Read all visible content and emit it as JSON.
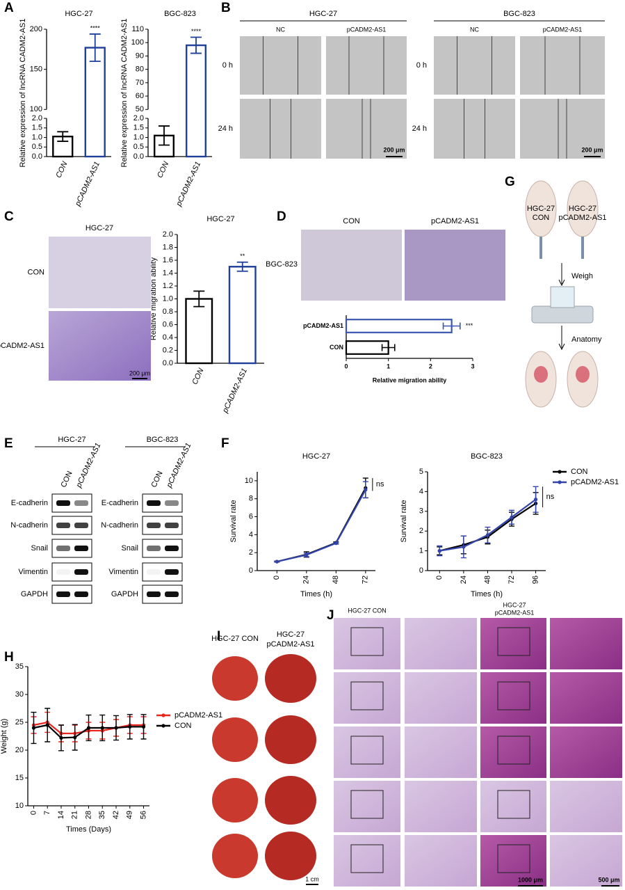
{
  "panel_letters": [
    "A",
    "B",
    "C",
    "D",
    "E",
    "F",
    "G",
    "H",
    "I",
    "J"
  ],
  "chart_data": [
    {
      "type": "bar",
      "title": "HGC-27",
      "y_label": "Relative expression of lncRNA CADM2-AS1",
      "categories": [
        "CON",
        "pCADM2-AS1"
      ],
      "values": [
        1.05,
        177
      ],
      "errors": [
        0.25,
        17
      ],
      "colors": [
        "#000000",
        "#1f3f99"
      ],
      "significance": [
        null,
        "****"
      ],
      "ylim_segments": [
        [
          0,
          2
        ],
        [
          100,
          200
        ]
      ],
      "yticks": [
        {
          "value": 0,
          "label": "0.0"
        },
        0.5,
        {
          "value": 1,
          "label": "1.0"
        },
        1.5,
        {
          "value": 2,
          "label": "2.0"
        },
        100,
        150,
        200
      ]
    },
    {
      "type": "bar",
      "title": "BGC-823",
      "y_label": "Relative expression of lncRNA CADM2-AS1",
      "categories": [
        "CON",
        "pCADM2-AS1"
      ],
      "values": [
        1.1,
        98
      ],
      "errors": [
        0.5,
        6
      ],
      "colors": [
        "#000000",
        "#1f3f99"
      ],
      "significance": [
        null,
        "****"
      ],
      "ylim_segments": [
        [
          0,
          2
        ],
        [
          50,
          110
        ]
      ],
      "yticks": [
        {
          "value": 0,
          "label": "0.0"
        },
        0.5,
        {
          "value": 1,
          "label": "1.0"
        },
        1.5,
        {
          "value": 2,
          "label": "2.0"
        },
        50,
        60,
        70,
        80,
        90,
        100,
        110
      ]
    },
    {
      "type": "bar",
      "title": "HGC-27",
      "y_label": "Relative migration ability",
      "categories": [
        "CON",
        "pCADM2-AS1"
      ],
      "values": [
        1.0,
        1.5
      ],
      "errors": [
        0.12,
        0.07
      ],
      "colors": [
        "#000000",
        "#1f3f99"
      ],
      "significance": [
        null,
        "**"
      ],
      "ylim": [
        0,
        2
      ],
      "yticks": [
        {
          "value": 0,
          "label": "0.0"
        },
        0.2,
        0.4,
        0.6,
        0.8,
        {
          "value": 1,
          "label": "1.0"
        },
        1.2,
        1.4,
        1.6,
        1.8,
        {
          "value": 2,
          "label": "2.0"
        }
      ]
    },
    {
      "type": "hbar",
      "x_label": "Relative migration ability",
      "categories": [
        "CON",
        "pCADM2-AS1"
      ],
      "values": [
        1.0,
        2.5
      ],
      "errors": [
        0.15,
        0.2
      ],
      "colors": [
        "#000000",
        "#3a56b0"
      ],
      "significance": [
        null,
        "***"
      ],
      "xlim": [
        0,
        3
      ],
      "xticks": [
        0,
        1,
        2,
        3
      ]
    },
    {
      "type": "line",
      "title": "HGC-27",
      "y_label": "Survival rate",
      "x_label": "Times (h)",
      "x": [
        0,
        24,
        48,
        72
      ],
      "xlim": [
        -16,
        80
      ],
      "xticks": [
        0,
        24,
        48,
        72
      ],
      "ylim": [
        0,
        11
      ],
      "yticks": [
        0,
        2,
        4,
        6,
        8,
        10
      ],
      "annotation": "ns",
      "series": [
        {
          "color": "#000000",
          "values": [
            1,
            1.8,
            3.1,
            9.2
          ],
          "errors": [
            0.05,
            0.3,
            0.1,
            1.1
          ]
        },
        {
          "color": "#3344aa",
          "values": [
            1,
            1.75,
            3.05,
            9.0
          ],
          "errors": [
            0.05,
            0.2,
            0.1,
            0.9
          ]
        }
      ]
    },
    {
      "type": "line",
      "title": "BGC-823",
      "y_label": "Survival rate",
      "x_label": "Times (h)",
      "x": [
        0,
        24,
        48,
        72,
        96
      ],
      "xlim": [
        -12,
        106
      ],
      "xticks": [
        0,
        24,
        48,
        72,
        96
      ],
      "ylim": [
        0,
        5
      ],
      "yticks": [
        0,
        1,
        2,
        3,
        4,
        5
      ],
      "annotation": "ns",
      "legend": "right",
      "series": [
        {
          "name": "CON",
          "color": "#000000",
          "values": [
            1,
            1.3,
            1.7,
            2.6,
            3.4
          ],
          "errors": [
            0.2,
            0.45,
            0.35,
            0.35,
            0.55
          ]
        },
        {
          "name": "pCADM2-AS1",
          "color": "#3344aa",
          "values": [
            1.0,
            1.2,
            1.8,
            2.7,
            3.6
          ],
          "errors": [
            0.25,
            0.55,
            0.4,
            0.35,
            0.65
          ]
        }
      ]
    },
    {
      "type": "line",
      "y_label": "Weight (g)",
      "x_label": "Times (Days)",
      "x": [
        0,
        7,
        14,
        21,
        28,
        35,
        42,
        49,
        56
      ],
      "xlim": [
        -3,
        59
      ],
      "xticks": [
        0,
        7,
        14,
        21,
        28,
        35,
        42,
        49,
        56
      ],
      "ylim": [
        10,
        35
      ],
      "yticks": [
        10,
        15,
        20,
        25,
        30,
        35
      ],
      "legend": "right",
      "series": [
        {
          "name": "pCADM2-AS1",
          "color": "#e8251f",
          "values": [
            24.5,
            25,
            23,
            23,
            23.5,
            23.5,
            24,
            24.5,
            24.5
          ],
          "errors": [
            1.5,
            1.8,
            1.5,
            1.5,
            1.5,
            1.5,
            1.5,
            1.5,
            1.5
          ]
        },
        {
          "name": "CON",
          "color": "#000000",
          "values": [
            24,
            24.5,
            22.2,
            22.3,
            24,
            24,
            24,
            24.2,
            24.2
          ],
          "errors": [
            2.8,
            3,
            2.3,
            2.3,
            2.3,
            2.3,
            2.2,
            2.2,
            2.2
          ]
        }
      ]
    }
  ],
  "panel_b": {
    "cell_lines": [
      "HGC-27",
      "BGC-823"
    ],
    "groups": [
      "NC",
      "pCADM2-AS1"
    ],
    "times": [
      "0 h",
      "24 h"
    ],
    "scale_bar": "200 μm"
  },
  "panel_c": {
    "title": "HGC-27",
    "rows": [
      "CON",
      "pCADM2-AS1"
    ],
    "scale_bar": "200 μm"
  },
  "panel_d": {
    "columns": [
      "CON",
      "pCADM2-AS1"
    ],
    "row": "BGC-823"
  },
  "panel_e": {
    "cell_lines": [
      "HGC-27",
      "BGC-823"
    ],
    "lanes": [
      "CON",
      "pCADM2-AS1"
    ],
    "proteins": [
      "E-cadherin",
      "N-cadherin",
      "Snail",
      "Vimentin",
      "GAPDH"
    ]
  },
  "panel_g": {
    "groups": [
      [
        "HGC-27",
        "CON"
      ],
      [
        "HGC-27",
        "pCADM2-AS1"
      ]
    ],
    "steps": [
      "Weigh",
      "Anatomy"
    ]
  },
  "panel_i": {
    "columns": [
      [
        "HGC-27 CON"
      ],
      [
        "HGC-27",
        "pCADM2-AS1"
      ]
    ],
    "scale_bar": "1 cm"
  },
  "panel_j": {
    "columns": [
      [
        "HGC-27 CON"
      ],
      [
        "HGC-27",
        "pCADM2-AS1"
      ]
    ],
    "scale_bars": [
      "1000 μm",
      "500 μm"
    ]
  }
}
